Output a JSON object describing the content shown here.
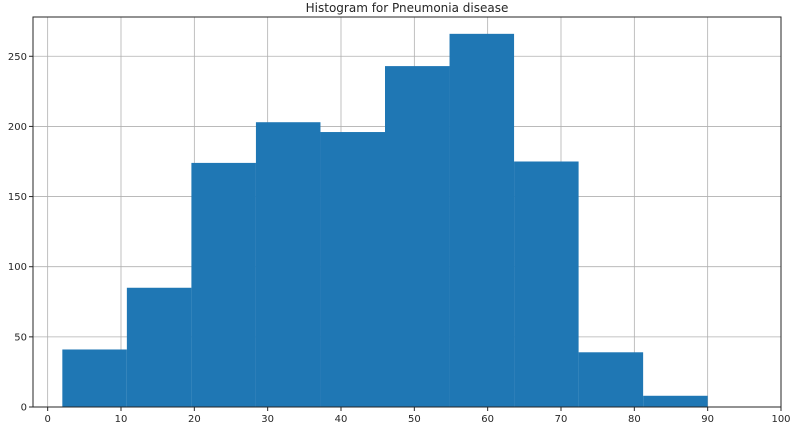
{
  "chart_data": {
    "type": "bar",
    "title": "Histogram for Pneumonia disease",
    "xlabel": "",
    "ylabel": "",
    "xlim": [
      -2,
      100
    ],
    "ylim": [
      0,
      278
    ],
    "xticks": [
      0,
      10,
      20,
      30,
      40,
      50,
      60,
      70,
      80,
      90,
      100
    ],
    "yticks": [
      0,
      50,
      100,
      150,
      200,
      250
    ],
    "grid": true,
    "bar_color": "#1f77b4",
    "bins": [
      {
        "x0": 2.0,
        "x1": 10.8,
        "value": 41
      },
      {
        "x0": 10.8,
        "x1": 19.6,
        "value": 85
      },
      {
        "x0": 19.6,
        "x1": 28.4,
        "value": 174
      },
      {
        "x0": 28.4,
        "x1": 37.2,
        "value": 203
      },
      {
        "x0": 37.2,
        "x1": 46.0,
        "value": 196
      },
      {
        "x0": 46.0,
        "x1": 54.8,
        "value": 243
      },
      {
        "x0": 54.8,
        "x1": 63.6,
        "value": 266
      },
      {
        "x0": 63.6,
        "x1": 72.4,
        "value": 175
      },
      {
        "x0": 72.4,
        "x1": 81.2,
        "value": 39
      },
      {
        "x0": 81.2,
        "x1": 90.0,
        "value": 8
      }
    ]
  }
}
